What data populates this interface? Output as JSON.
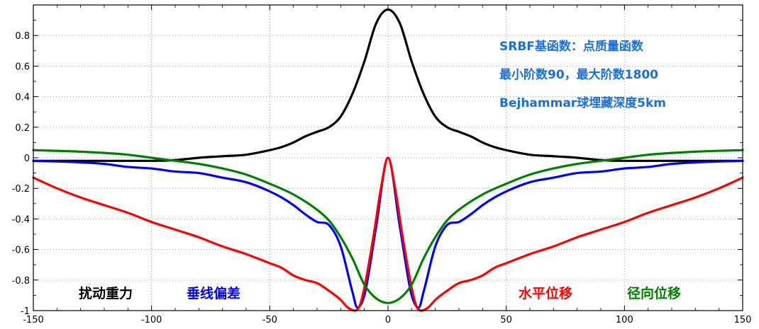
{
  "chart_data": {
    "type": "line",
    "xlim": [
      -150,
      150
    ],
    "ylim": [
      -1,
      1
    ],
    "x_ticks": [
      -150,
      -100,
      -50,
      0,
      50,
      100,
      150
    ],
    "y_ticks": [
      -1,
      -0.8,
      -0.6,
      -0.4,
      -0.2,
      0,
      0.2,
      0.4,
      0.6,
      0.8
    ],
    "y_tick_labels": [
      "-1",
      "-0.8",
      "-0.6",
      "-0.4",
      "-0.2",
      "0",
      "0.2",
      "0.4",
      "0.6",
      "0.8"
    ],
    "x_tick_labels": [
      "-150",
      "-100",
      "-50",
      "0",
      "50",
      "100",
      "150"
    ],
    "grid": true,
    "annotations": [
      "SRBF基函数：点质量函数",
      "最小阶数90，最大阶数1800",
      "Bejhammar球埋藏深度5km"
    ],
    "series": [
      {
        "name": "扰动重力",
        "color": "#000000",
        "x": [
          -150,
          -130,
          -110,
          -100,
          -90,
          -80,
          -70,
          -60,
          -50,
          -45,
          -40,
          -35,
          -30,
          -25,
          -20,
          -15,
          -10,
          -5,
          0,
          5,
          10,
          15,
          20,
          25,
          30,
          35,
          40,
          45,
          50,
          60,
          70,
          80,
          90,
          100,
          110,
          130,
          150
        ],
        "y": [
          -0.02,
          -0.02,
          -0.02,
          -0.02,
          -0.015,
          0.0,
          0.01,
          0.02,
          0.05,
          0.07,
          0.1,
          0.14,
          0.17,
          0.2,
          0.27,
          0.42,
          0.63,
          0.88,
          0.97,
          0.88,
          0.63,
          0.42,
          0.27,
          0.2,
          0.17,
          0.14,
          0.1,
          0.07,
          0.05,
          0.02,
          0.01,
          0.0,
          -0.015,
          -0.02,
          -0.02,
          -0.02,
          -0.02
        ]
      },
      {
        "name": "垂线偏差",
        "color": "#0000ff",
        "x": [
          -150,
          -130,
          -120,
          -110,
          -100,
          -90,
          -80,
          -70,
          -60,
          -50,
          -45,
          -40,
          -35,
          -30,
          -25,
          -20,
          -15,
          -13,
          -10,
          -5,
          0,
          5,
          10,
          13,
          15,
          20,
          25,
          30,
          35,
          40,
          45,
          50,
          60,
          70,
          80,
          90,
          100,
          110,
          120,
          130,
          150
        ],
        "y": [
          -0.02,
          -0.03,
          -0.04,
          -0.06,
          -0.07,
          -0.09,
          -0.1,
          -0.13,
          -0.16,
          -0.22,
          -0.26,
          -0.31,
          -0.37,
          -0.42,
          -0.44,
          -0.58,
          -0.88,
          -0.98,
          -0.9,
          -0.45,
          0.0,
          -0.45,
          -0.9,
          -0.98,
          -0.88,
          -0.58,
          -0.44,
          -0.42,
          -0.37,
          -0.31,
          -0.26,
          -0.22,
          -0.16,
          -0.13,
          -0.1,
          -0.09,
          -0.07,
          -0.06,
          -0.04,
          -0.03,
          -0.02
        ]
      },
      {
        "name": "水平位移",
        "color": "#ff0000",
        "x": [
          -150,
          -140,
          -130,
          -120,
          -110,
          -100,
          -90,
          -80,
          -70,
          -60,
          -50,
          -45,
          -40,
          -35,
          -30,
          -25,
          -20,
          -17,
          -14,
          -12,
          -10,
          -6,
          -3,
          0,
          3,
          6,
          10,
          12,
          14,
          17,
          20,
          25,
          30,
          35,
          40,
          45,
          50,
          60,
          70,
          80,
          90,
          100,
          110,
          120,
          130,
          140,
          150
        ],
        "y": [
          -0.13,
          -0.2,
          -0.26,
          -0.31,
          -0.36,
          -0.42,
          -0.47,
          -0.52,
          -0.58,
          -0.63,
          -0.69,
          -0.72,
          -0.77,
          -0.8,
          -0.82,
          -0.87,
          -0.93,
          -0.98,
          -1.0,
          -0.97,
          -0.85,
          -0.5,
          -0.2,
          0.0,
          -0.2,
          -0.5,
          -0.85,
          -0.97,
          -1.0,
          -0.98,
          -0.93,
          -0.87,
          -0.82,
          -0.8,
          -0.77,
          -0.72,
          -0.69,
          -0.63,
          -0.58,
          -0.52,
          -0.47,
          -0.42,
          -0.36,
          -0.31,
          -0.26,
          -0.2,
          -0.13
        ]
      },
      {
        "name": "径向位移",
        "color": "#008000",
        "x": [
          -150,
          -130,
          -110,
          -100,
          -90,
          -80,
          -70,
          -60,
          -50,
          -40,
          -30,
          -25,
          -20,
          -15,
          -10,
          -5,
          0,
          5,
          10,
          15,
          20,
          25,
          30,
          40,
          50,
          60,
          70,
          80,
          90,
          100,
          110,
          130,
          150
        ],
        "y": [
          0.05,
          0.04,
          0.02,
          0.0,
          -0.02,
          -0.04,
          -0.07,
          -0.11,
          -0.17,
          -0.24,
          -0.34,
          -0.41,
          -0.52,
          -0.66,
          -0.83,
          -0.92,
          -0.95,
          -0.92,
          -0.83,
          -0.66,
          -0.52,
          -0.41,
          -0.34,
          -0.24,
          -0.17,
          -0.11,
          -0.07,
          -0.04,
          -0.02,
          0.0,
          0.02,
          0.04,
          0.05
        ]
      }
    ]
  }
}
